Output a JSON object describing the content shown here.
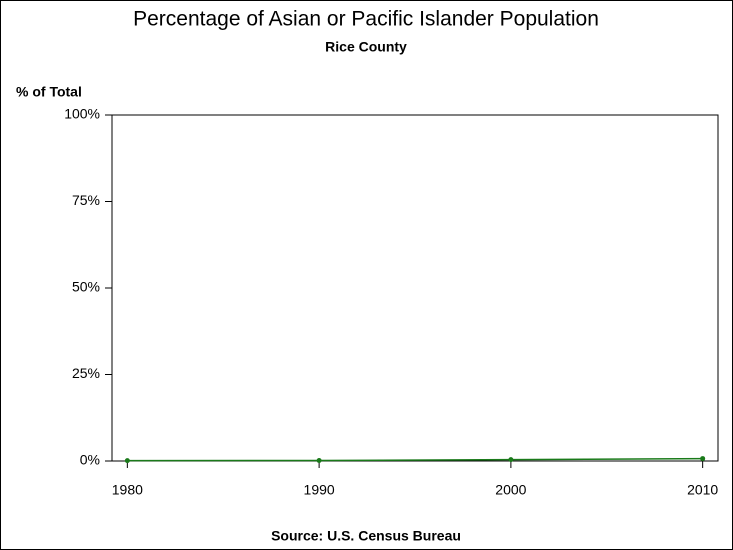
{
  "chart_data": {
    "type": "line",
    "title": "Percentage of Asian or Pacific Islander Population",
    "subtitle": "Rice County",
    "ylabel": "% of Total",
    "source": "Source: U.S. Census Bureau",
    "x": [
      1980,
      1990,
      2000,
      2010
    ],
    "series": [
      {
        "name": "Rice County",
        "color": "#1a7a1a",
        "values": [
          0.1,
          0.15,
          0.4,
          0.7
        ]
      }
    ],
    "xlim": [
      1979.2,
      2010.8
    ],
    "xticks": [
      1980,
      1990,
      2000,
      2010
    ],
    "ylim": [
      0,
      100
    ],
    "yticks": [
      {
        "value": 0,
        "label": "0%"
      },
      {
        "value": 25,
        "label": "25%"
      },
      {
        "value": 50,
        "label": "50%"
      },
      {
        "value": 75,
        "label": "75%"
      },
      {
        "value": 100,
        "label": "100%"
      }
    ]
  }
}
